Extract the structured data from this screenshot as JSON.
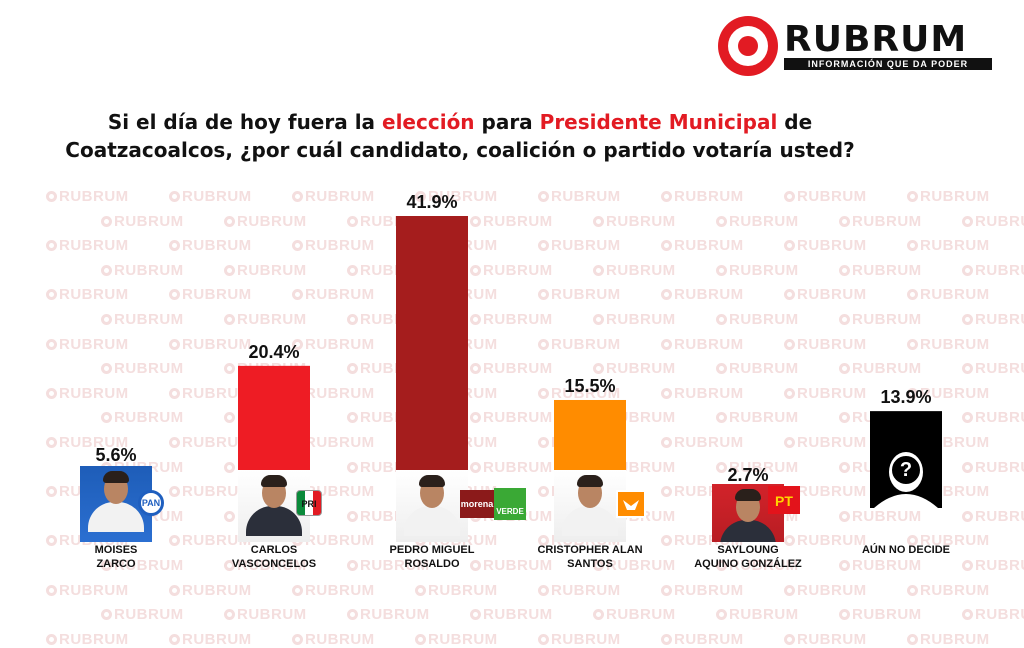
{
  "brand": {
    "name": "RUBRUM",
    "tagline": "INFORMACIÓN QUE DA PODER",
    "watermark": "RUBRUM",
    "accent_color": "#e21b23"
  },
  "question": {
    "part1": "Si el día de hoy fuera la ",
    "highlight1": "elección",
    "part2": " para ",
    "highlight2": "Presidente Municipal",
    "part3": " de Coatzacoalcos, ¿por cuál candidato, coalición o partido votaría usted?"
  },
  "chart_data": {
    "type": "bar",
    "categories": [
      "MOISES ZARCO",
      "CARLOS VASCONCELOS",
      "PEDRO MIGUEL ROSALDO",
      "CRISTOPHER ALAN SANTOS",
      "SAYLOUNG AQUINO GONZÁLEZ",
      "AÚN NO DECIDE"
    ],
    "values": [
      5.6,
      20.4,
      41.9,
      15.5,
      2.7,
      13.9
    ],
    "value_labels": [
      "5.6%",
      "20.4%",
      "41.9%",
      "15.5%",
      "2.7%",
      "13.9%"
    ],
    "colors": [
      "#1f5fbf",
      "#ee1c24",
      "#a51d1d",
      "#ff8c00",
      "#e3131b",
      "#000000"
    ],
    "ylim": [
      0,
      45
    ],
    "grid": false,
    "legend": "none"
  },
  "candidates": [
    {
      "line1": "MOISES",
      "line2": "ZARCO",
      "party": "PAN",
      "party_icon": "pan-logo"
    },
    {
      "line1": "CARLOS",
      "line2": "VASCONCELOS",
      "party": "PRI",
      "party_icon": "pri-logo"
    },
    {
      "line1": "PEDRO MIGUEL",
      "line2": "ROSALDO",
      "party": "morena",
      "party2": "VERDE",
      "party_icon": "morena-verde-logo"
    },
    {
      "line1": "CRISTOPHER ALAN",
      "line2": "SANTOS",
      "party": "",
      "party_icon": "movimiento-ciudadano-logo"
    },
    {
      "line1": "SAYLOUNG",
      "line2": "AQUINO GONZÁLEZ",
      "party": "PT",
      "party_icon": "pt-logo"
    },
    {
      "line1": "AÚN NO DECIDE",
      "line2": "",
      "party": "",
      "party_icon": "undecided-silhouette",
      "mark": "?"
    }
  ]
}
